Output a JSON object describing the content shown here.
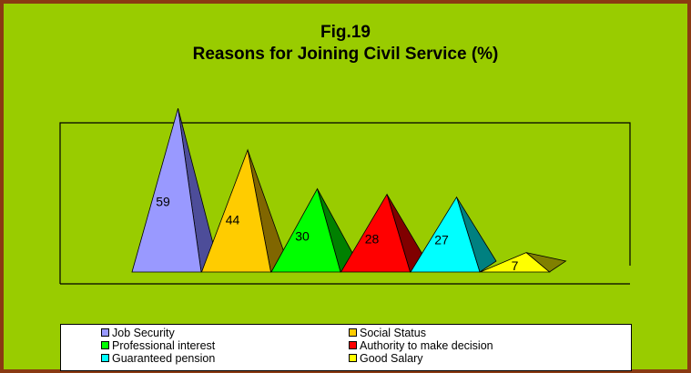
{
  "chart_data": {
    "type": "bar",
    "title": "Fig.19",
    "subtitle": "Reasons for Joining Civil Service (%)",
    "categories": [
      "Job Security",
      "Social Status",
      "Professional interest",
      "Authority to make decision",
      "Guaranteed pension",
      "Good Salary"
    ],
    "values": [
      59,
      44,
      30,
      28,
      27,
      7
    ],
    "value_labels": [
      "59",
      "44",
      "30",
      "28",
      "27",
      "7"
    ],
    "colors": [
      "#9999ff",
      "#ffcc00",
      "#00ff00",
      "#ff0000",
      "#00ffff",
      "#ffff00"
    ],
    "side_colors": [
      "#4d4d99",
      "#806600",
      "#008000",
      "#800000",
      "#008080",
      "#808000"
    ],
    "bar_shape": "3d-pyramid",
    "legend_position": "bottom",
    "grid": false
  }
}
